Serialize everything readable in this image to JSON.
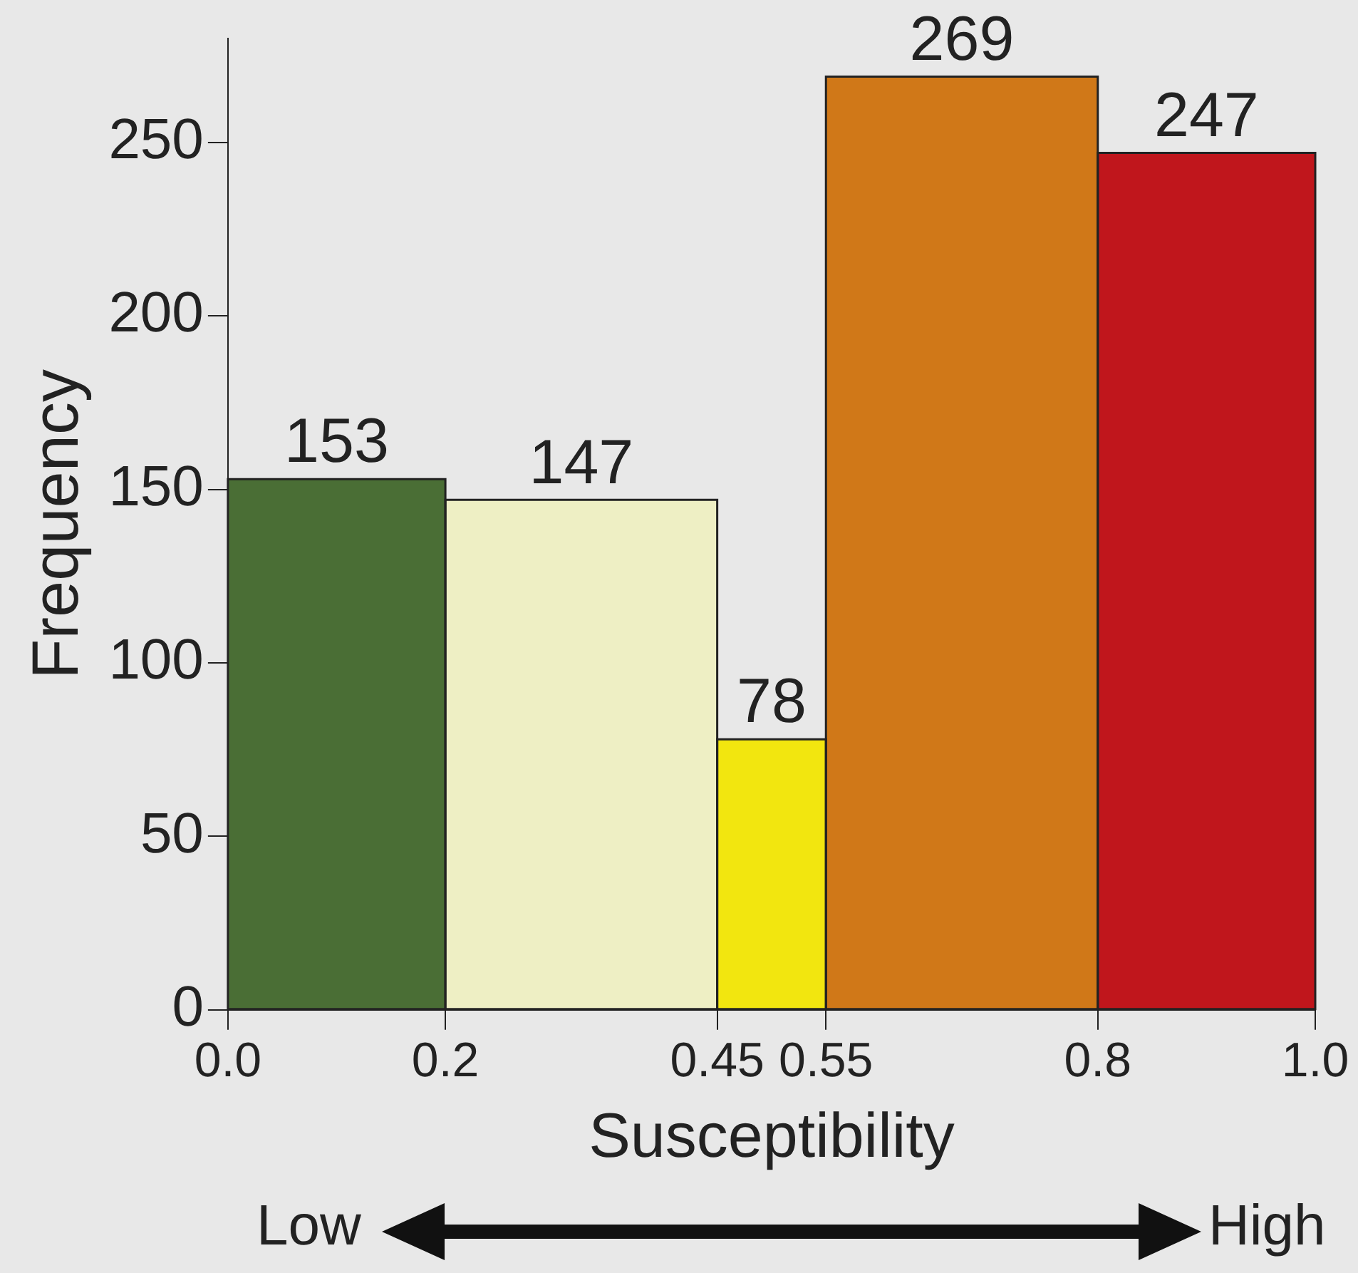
{
  "chart_data": {
    "type": "histogram",
    "xlabel": "Susceptibility",
    "ylabel": "Frequency",
    "bins": [
      0.0,
      0.2,
      0.45,
      0.55,
      0.8,
      1.0
    ],
    "values": [
      153,
      147,
      78,
      269,
      247
    ],
    "colors": [
      "#4a6e35",
      "#eeefc4",
      "#f2e60f",
      "#d07818",
      "#c0161c"
    ],
    "xlim": [
      0.0,
      1.0
    ],
    "xticks": [
      {
        "value": 0,
        "label": "0.0"
      },
      0.2,
      0.45,
      0.55,
      0.8,
      {
        "value": 1,
        "label": "1.0"
      }
    ],
    "ylim": [
      0,
      280
    ],
    "yticks": [
      0,
      50,
      100,
      150,
      200,
      250
    ],
    "grid": false,
    "data_labels": true,
    "annotations": [
      "Low",
      "High"
    ]
  }
}
